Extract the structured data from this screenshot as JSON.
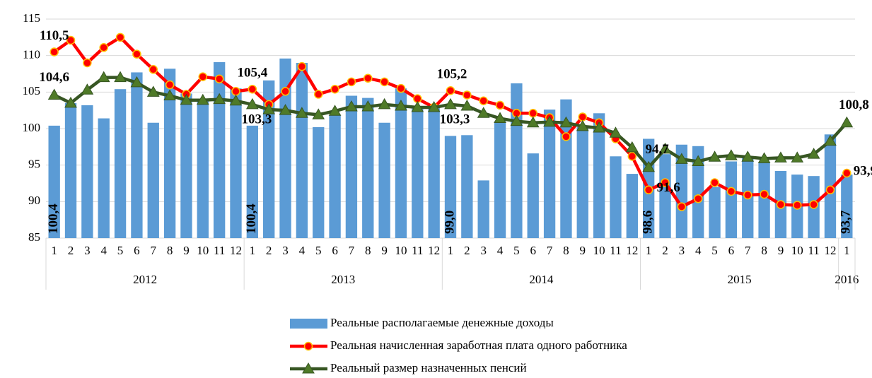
{
  "chart_data": {
    "type": "bar",
    "years": [
      {
        "name": "2012",
        "months": [
          "1",
          "2",
          "3",
          "4",
          "5",
          "6",
          "7",
          "8",
          "9",
          "10",
          "11",
          "12"
        ]
      },
      {
        "name": "2013",
        "months": [
          "1",
          "2",
          "3",
          "4",
          "5",
          "6",
          "7",
          "8",
          "9",
          "10",
          "11",
          "12"
        ]
      },
      {
        "name": "2014",
        "months": [
          "1",
          "2",
          "3",
          "4",
          "5",
          "6",
          "7",
          "8",
          "9",
          "10",
          "11",
          "12"
        ]
      },
      {
        "name": "2015",
        "months": [
          "1",
          "2",
          "3",
          "4",
          "5",
          "6",
          "7",
          "8",
          "9",
          "10",
          "11",
          "12"
        ]
      },
      {
        "name": "2016",
        "months": [
          "1"
        ]
      }
    ],
    "ylim": [
      85,
      115
    ],
    "yticks": [
      85,
      90,
      95,
      100,
      105,
      110,
      115
    ],
    "grid": true,
    "legend": "bottom",
    "series": [
      {
        "name": "Реальные располагаемые денежные доходы",
        "type": "bar",
        "color": "#5b9bd5",
        "values": [
          100.4,
          103.5,
          103.2,
          101.4,
          105.4,
          107.7,
          100.8,
          108.2,
          104.8,
          104.0,
          109.1,
          105.5,
          100.4,
          106.6,
          109.6,
          109.0,
          100.2,
          101.8,
          104.5,
          104.2,
          100.8,
          105.5,
          103.0,
          103.0,
          99.0,
          99.1,
          92.9,
          101.0,
          106.2,
          96.6,
          102.6,
          104.0,
          100.2,
          102.1,
          96.2,
          93.8,
          98.6,
          96.5,
          97.8,
          97.6,
          92.0,
          95.5,
          96.0,
          95.4,
          94.2,
          93.7,
          93.5,
          99.2,
          93.7
        ],
        "value_labels": [
          "100,4",
          null,
          null,
          null,
          null,
          null,
          null,
          null,
          null,
          null,
          null,
          null,
          "100,4",
          null,
          null,
          null,
          null,
          null,
          null,
          null,
          null,
          null,
          null,
          null,
          "99,0",
          null,
          null,
          null,
          null,
          null,
          null,
          null,
          null,
          null,
          null,
          null,
          "98,6",
          null,
          null,
          null,
          null,
          null,
          null,
          null,
          null,
          null,
          null,
          null,
          "93,7"
        ]
      },
      {
        "name": "Реальная начисленная заработная плата одного работника",
        "type": "line",
        "color": "#ff0000",
        "values": [
          110.5,
          112.1,
          109.0,
          111.1,
          112.5,
          110.2,
          108.1,
          106.0,
          104.7,
          107.1,
          106.8,
          105.1,
          105.4,
          103.3,
          105.1,
          108.5,
          104.7,
          105.4,
          106.4,
          106.9,
          106.4,
          105.5,
          104.1,
          102.9,
          105.2,
          104.6,
          103.8,
          103.2,
          102.1,
          102.1,
          101.5,
          98.9,
          101.6,
          100.8,
          98.6,
          96.2,
          91.6,
          92.6,
          89.3,
          90.4,
          92.6,
          91.4,
          90.9,
          91.0,
          89.6,
          89.5,
          89.6,
          91.6,
          93.9
        ],
        "value_labels": [
          "110,5",
          null,
          null,
          null,
          null,
          null,
          null,
          null,
          null,
          null,
          null,
          null,
          "105,4",
          null,
          null,
          null,
          null,
          null,
          null,
          null,
          null,
          null,
          null,
          null,
          "105,2",
          null,
          null,
          null,
          null,
          null,
          null,
          null,
          null,
          null,
          null,
          null,
          "91,6",
          null,
          null,
          null,
          null,
          null,
          null,
          null,
          null,
          null,
          null,
          null,
          "93,9"
        ]
      },
      {
        "name": "Реальный размер назначенных пенсий",
        "type": "line",
        "color": "#375623",
        "values": [
          104.6,
          103.5,
          105.3,
          107.0,
          107.0,
          106.3,
          105.0,
          104.5,
          103.9,
          103.9,
          104.0,
          103.8,
          103.3,
          102.6,
          102.5,
          102.1,
          101.9,
          102.4,
          103.0,
          103.0,
          103.3,
          103.1,
          102.9,
          102.9,
          103.3,
          103.1,
          102.1,
          101.4,
          101.0,
          100.8,
          100.9,
          100.8,
          100.3,
          100.1,
          99.4,
          97.4,
          94.7,
          97.2,
          95.8,
          95.5,
          96.1,
          96.3,
          96.1,
          95.9,
          96.0,
          96.0,
          96.5,
          98.3,
          100.8
        ],
        "value_labels": [
          "104,6",
          null,
          null,
          null,
          null,
          null,
          null,
          null,
          null,
          null,
          null,
          null,
          "103,3",
          null,
          null,
          null,
          null,
          null,
          null,
          null,
          null,
          null,
          null,
          null,
          "103,3",
          null,
          null,
          null,
          null,
          null,
          null,
          null,
          null,
          null,
          null,
          null,
          "94,7",
          null,
          null,
          null,
          null,
          null,
          null,
          null,
          null,
          null,
          null,
          null,
          "100,8"
        ]
      }
    ]
  }
}
